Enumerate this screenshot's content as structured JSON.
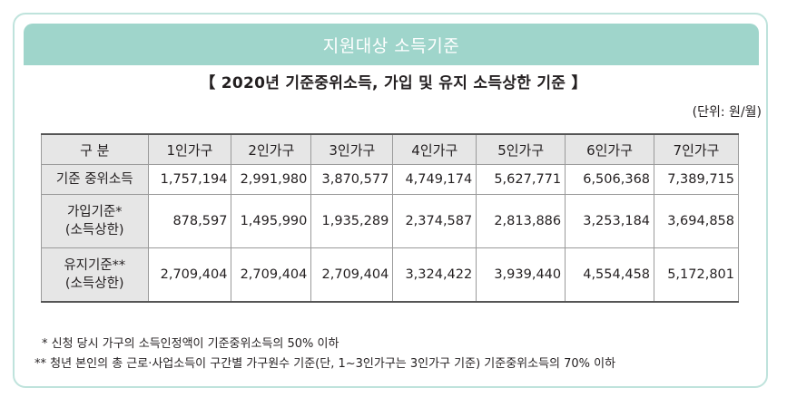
{
  "banner": "지원대상 소득기준",
  "title": "【 2020년 기준중위소득, 가입 및 유지 소득상한 기준 】",
  "unit": "(단위: 원/월)",
  "table": {
    "headers": [
      "구 분",
      "1인가구",
      "2인가구",
      "3인가구",
      "4인가구",
      "5인가구",
      "6인가구",
      "7인가구"
    ],
    "rows": [
      {
        "label": "기준 중위소득",
        "label2": "",
        "values": [
          "1,757,194",
          "2,991,980",
          "3,870,577",
          "4,749,174",
          "5,627,771",
          "6,506,368",
          "7,389,715"
        ]
      },
      {
        "label": "가입기준*",
        "label2": "(소득상한)",
        "values": [
          "878,597",
          "1,495,990",
          "1,935,289",
          "2,374,587",
          "2,813,886",
          "3,253,184",
          "3,694,858"
        ]
      },
      {
        "label": "유지기준**",
        "label2": "(소득상한)",
        "values": [
          "2,709,404",
          "2,709,404",
          "2,709,404",
          "3,324,422",
          "3,939,440",
          "4,554,458",
          "5,172,801"
        ]
      }
    ]
  },
  "notes": [
    "* 신청 당시 가구의 소득인정액이 기준중위소득의 50% 이하",
    "** 청년 본인의 총 근로·사업소득이 구간별 가구원수 기준(단, 1~3인가구는 3인가구 기준) 기준중위소득의 70% 이하"
  ]
}
